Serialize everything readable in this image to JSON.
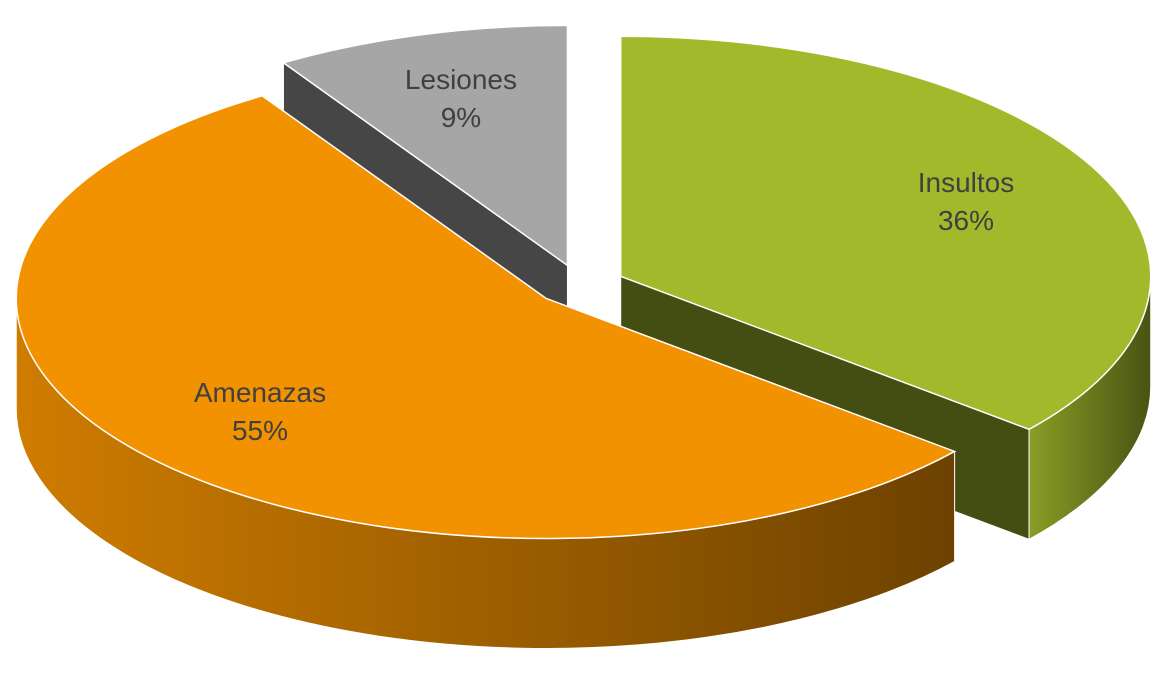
{
  "chart_data": {
    "type": "pie3d",
    "categories": [
      "Insultos",
      "Amenazas",
      "Lesiones"
    ],
    "values": [
      36,
      55,
      9
    ],
    "value_labels": [
      "36%",
      "55%",
      "9%"
    ],
    "colors": [
      "#a2b92b",
      "#f39200",
      "#a6a6a6"
    ]
  }
}
